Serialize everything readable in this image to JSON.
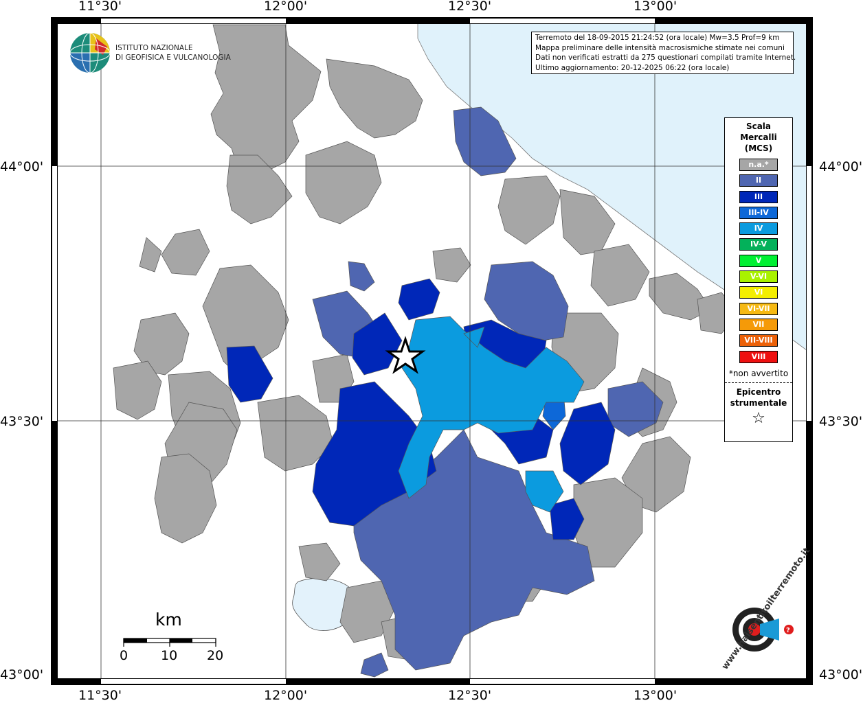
{
  "lon_labels": [
    "11°30'",
    "12°00'",
    "12°30'",
    "13°00'"
  ],
  "lat_labels": [
    "44°00'",
    "43°30'",
    "43°00'"
  ],
  "info_box": {
    "line1": "Terremoto del 18-09-2015 21:24:52 (ora locale) Mw=3.5 Prof=9 km",
    "line2": "Mappa preliminare delle intensità macrosismiche stimate nei comuni",
    "line3": "Dati non verificati estratti da 275 questionari compilati tramite Internet.",
    "line4": "Ultimo aggiornamento: 20-12-2025 06:22 (ora locale)"
  },
  "legend": {
    "title": [
      "Scala",
      "Mercalli",
      "(MCS)"
    ],
    "classes": [
      {
        "label": "n.a.*",
        "color": "#a6a6a6"
      },
      {
        "label": "II",
        "color": "#4f66b1"
      },
      {
        "label": "III",
        "color": "#0027b8"
      },
      {
        "label": "III-IV",
        "color": "#0d68d8"
      },
      {
        "label": "IV",
        "color": "#0b9bdf"
      },
      {
        "label": "IV-V",
        "color": "#03b15a"
      },
      {
        "label": "V",
        "color": "#00f032"
      },
      {
        "label": "V-VI",
        "color": "#a9f200"
      },
      {
        "label": "VI",
        "color": "#f4ee00"
      },
      {
        "label": "VI-VII",
        "color": "#f6b913"
      },
      {
        "label": "VII",
        "color": "#f59a08"
      },
      {
        "label": "VII-VIII",
        "color": "#ec6108"
      },
      {
        "label": "VIII",
        "color": "#ee1010"
      }
    ],
    "note": "*non avvertito",
    "epicenter_title": [
      "Epicentro",
      "strumentale"
    ],
    "epicenter_symbol": "☆"
  },
  "ingv_logo": {
    "line1": "ISTITUTO NAZIONALE",
    "line2": "DI GEOFISICA E VULCANOLOGIA"
  },
  "scale_bar": {
    "unit": "km",
    "ticks": [
      "0",
      "10",
      "20"
    ]
  },
  "hsit_logo": {
    "text": "www.haisentitoilterremoto.it"
  },
  "colors": {
    "sea": "#e0f2fb",
    "lake": "#e3f2fb",
    "na": "#a6a6a6",
    "II": "#4f66b1",
    "III": "#0027b8",
    "III-IV": "#0d68d8",
    "IV": "#0b9bdf"
  }
}
